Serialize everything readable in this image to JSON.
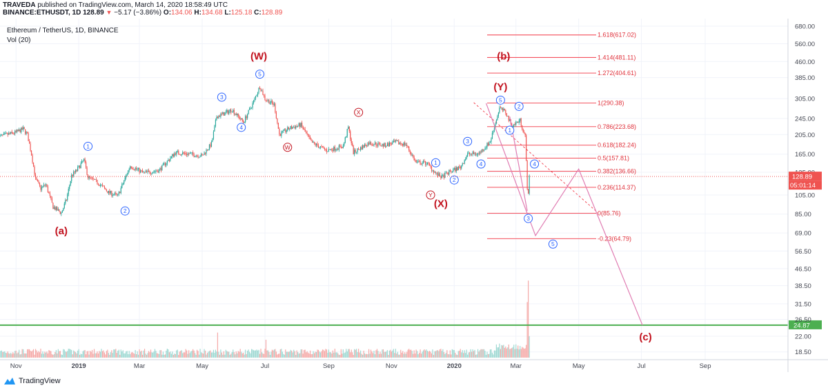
{
  "header": {
    "author": "TRAVEDA",
    "published_text": "published on TradingView.com, March 14, 2020 18:58:49 UTC",
    "symbol": "BINANCE:ETHUSDT, 1D",
    "last": "128.89",
    "change": "−5.17 (−3.86%)",
    "o_label": "O:",
    "o": "134.06",
    "h_label": "H:",
    "h": "134.68",
    "l_label": "L:",
    "l": "125.18",
    "c_label": "C:",
    "c": "128.89"
  },
  "legend": {
    "title": "Ethereum / TetherUS, 1D, BINANCE",
    "volume": "Vol (20)"
  },
  "footer": {
    "brand": "TradingView"
  },
  "colors": {
    "up": "#26a69a",
    "down": "#ef5350",
    "fib": "#f23645",
    "fib_label": "#e0323c",
    "wave_blue": "#2962ff",
    "wave_red": "#c2121e",
    "path": "#e07cb2",
    "support": "#4caf50",
    "grid": "#f0f3fa"
  },
  "chart_data": {
    "type": "candlestick",
    "title": "Ethereum / TetherUS, 1D, BINANCE",
    "y_scale": "log",
    "y_ticks": [
      "680.00",
      "560.00",
      "460.00",
      "385.00",
      "305.00",
      "245.00",
      "205.00",
      "165.00",
      "135.00",
      "105.00",
      "85.00",
      "69.00",
      "56.50",
      "46.50",
      "38.50",
      "31.50",
      "26.50",
      "22.00",
      "18.50"
    ],
    "x_ticks": [
      "Nov",
      "2019",
      "Mar",
      "May",
      "Jul",
      "Sep",
      "Nov",
      "2020",
      "Mar",
      "May",
      "Jul",
      "Sep"
    ],
    "last_price": "128.89",
    "last_price_countdown": "05:01:14",
    "support_level": "24.87",
    "price_path": [
      [
        "2018-10-15",
        200
      ],
      [
        "2018-11-01",
        210
      ],
      [
        "2018-11-08",
        218
      ],
      [
        "2018-11-12",
        205
      ],
      [
        "2018-11-16",
        165
      ],
      [
        "2018-11-20",
        125
      ],
      [
        "2018-11-25",
        113
      ],
      [
        "2018-11-30",
        118
      ],
      [
        "2018-12-07",
        92
      ],
      [
        "2018-12-15",
        86
      ],
      [
        "2018-12-20",
        100
      ],
      [
        "2018-12-25",
        130
      ],
      [
        "2018-12-30",
        138
      ],
      [
        "2019-01-06",
        155
      ],
      [
        "2019-01-10",
        128
      ],
      [
        "2019-01-20",
        120
      ],
      [
        "2019-01-30",
        108
      ],
      [
        "2019-02-08",
        104
      ],
      [
        "2019-02-20",
        145
      ],
      [
        "2019-03-05",
        134
      ],
      [
        "2019-03-20",
        138
      ],
      [
        "2019-04-05",
        168
      ],
      [
        "2019-04-20",
        165
      ],
      [
        "2019-05-01",
        162
      ],
      [
        "2019-05-10",
        185
      ],
      [
        "2019-05-15",
        250
      ],
      [
        "2019-05-22",
        258
      ],
      [
        "2019-05-30",
        270
      ],
      [
        "2019-06-10",
        235
      ],
      [
        "2019-06-20",
        295
      ],
      [
        "2019-06-26",
        350
      ],
      [
        "2019-07-01",
        305
      ],
      [
        "2019-07-10",
        285
      ],
      [
        "2019-07-15",
        205
      ],
      [
        "2019-07-25",
        220
      ],
      [
        "2019-08-05",
        228
      ],
      [
        "2019-08-15",
        188
      ],
      [
        "2019-08-30",
        172
      ],
      [
        "2019-09-15",
        180
      ],
      [
        "2019-09-20",
        222
      ],
      [
        "2019-09-25",
        168
      ],
      [
        "2019-10-10",
        187
      ],
      [
        "2019-10-25",
        182
      ],
      [
        "2019-11-05",
        188
      ],
      [
        "2019-11-15",
        184
      ],
      [
        "2019-11-25",
        150
      ],
      [
        "2019-12-05",
        150
      ],
      [
        "2019-12-15",
        132
      ],
      [
        "2019-12-20",
        128
      ],
      [
        "2019-12-28",
        136
      ],
      [
        "2020-01-07",
        143
      ],
      [
        "2020-01-14",
        165
      ],
      [
        "2020-01-25",
        166
      ],
      [
        "2020-02-05",
        190
      ],
      [
        "2020-02-14",
        275
      ],
      [
        "2020-02-20",
        262
      ],
      [
        "2020-02-26",
        225
      ],
      [
        "2020-03-05",
        240
      ],
      [
        "2020-03-10",
        200
      ],
      [
        "2020-03-12",
        115
      ],
      [
        "2020-03-13",
        104
      ],
      [
        "2020-03-14",
        129
      ]
    ],
    "volume_note": "Vol (20), histogram bars",
    "fib_levels": [
      {
        "label": "1.618(617.02)",
        "ratio": 1.618,
        "price": 617.02
      },
      {
        "label": "1.414(481.11)",
        "ratio": 1.414,
        "price": 481.11
      },
      {
        "label": "1.272(404.61)",
        "ratio": 1.272,
        "price": 404.61
      },
      {
        "label": "1(290.38)",
        "ratio": 1,
        "price": 290.38
      },
      {
        "label": "0.786(223.68)",
        "ratio": 0.786,
        "price": 223.68
      },
      {
        "label": "0.618(182.24)",
        "ratio": 0.618,
        "price": 182.24
      },
      {
        "label": "0.5(157.81)",
        "ratio": 0.5,
        "price": 157.81
      },
      {
        "label": "0.382(136.66)",
        "ratio": 0.382,
        "price": 136.66
      },
      {
        "label": "0.236(114.37)",
        "ratio": 0.236,
        "price": 114.37
      },
      {
        "label": "0(85.76)",
        "ratio": 0,
        "price": 85.76
      },
      {
        "label": "-0.23(64.79)",
        "ratio": -0.23,
        "price": 64.79
      }
    ],
    "wave_labels": [
      {
        "text": "(a)",
        "date": "2018-12-15",
        "price": 68,
        "style": "red-big"
      },
      {
        "text": "(W)",
        "date": "2019-06-25",
        "price": 470,
        "style": "red-big"
      },
      {
        "text": "(X)",
        "date": "2019-12-19",
        "price": 92,
        "style": "red-big"
      },
      {
        "text": "(b)",
        "date": "2020-02-18",
        "price": 470,
        "style": "red-big"
      },
      {
        "text": "(Y)",
        "date": "2020-02-15",
        "price": 335,
        "style": "red-big"
      },
      {
        "text": "(c)",
        "date": "2020-07-05",
        "price": 21,
        "style": "red-big"
      },
      {
        "text": "1",
        "date": "2019-01-10",
        "price": 180,
        "style": "blue-circle"
      },
      {
        "text": "2",
        "date": "2019-02-15",
        "price": 88,
        "style": "blue-circle"
      },
      {
        "text": "3",
        "date": "2019-05-20",
        "price": 310,
        "style": "blue-circle"
      },
      {
        "text": "4",
        "date": "2019-06-08",
        "price": 222,
        "style": "blue-circle"
      },
      {
        "text": "5",
        "date": "2019-06-26",
        "price": 400,
        "style": "blue-circle"
      },
      {
        "text": "1",
        "date": "2019-12-14",
        "price": 150,
        "style": "blue-circle"
      },
      {
        "text": "2",
        "date": "2020-01-01",
        "price": 124,
        "style": "blue-circle"
      },
      {
        "text": "3",
        "date": "2020-01-14",
        "price": 190,
        "style": "blue-circle"
      },
      {
        "text": "4",
        "date": "2020-01-27",
        "price": 148,
        "style": "blue-circle"
      },
      {
        "text": "5",
        "date": "2020-02-15",
        "price": 300,
        "style": "blue-circle"
      },
      {
        "text": "1",
        "date": "2020-02-24",
        "price": 215,
        "style": "blue-circle"
      },
      {
        "text": "2",
        "date": "2020-03-04",
        "price": 280,
        "style": "blue-circle"
      },
      {
        "text": "4",
        "date": "2020-03-19",
        "price": 148,
        "style": "blue-circle"
      },
      {
        "text": "3",
        "date": "2020-03-13",
        "price": 81,
        "style": "blue-circle"
      },
      {
        "text": "5",
        "date": "2020-04-06",
        "price": 61,
        "style": "blue-circle"
      },
      {
        "text": "W",
        "date": "2019-07-23",
        "price": 178,
        "style": "red-circle"
      },
      {
        "text": "X",
        "date": "2019-09-30",
        "price": 262,
        "style": "red-circle"
      },
      {
        "text": "Y",
        "date": "2019-12-09",
        "price": 105,
        "style": "red-circle"
      }
    ],
    "projection_path": [
      [
        "2020-02-01",
        290
      ],
      [
        "2020-03-20",
        67
      ],
      [
        "2020-05-01",
        140
      ],
      [
        "2020-07-02",
        24.87
      ]
    ],
    "channel_lines": [
      [
        [
          "2020-01-20",
          292
        ],
        [
          "2020-05-20",
          86
        ]
      ],
      [
        [
          "2020-03-12",
          290
        ],
        [
          "2020-03-13",
          86
        ]
      ]
    ]
  }
}
